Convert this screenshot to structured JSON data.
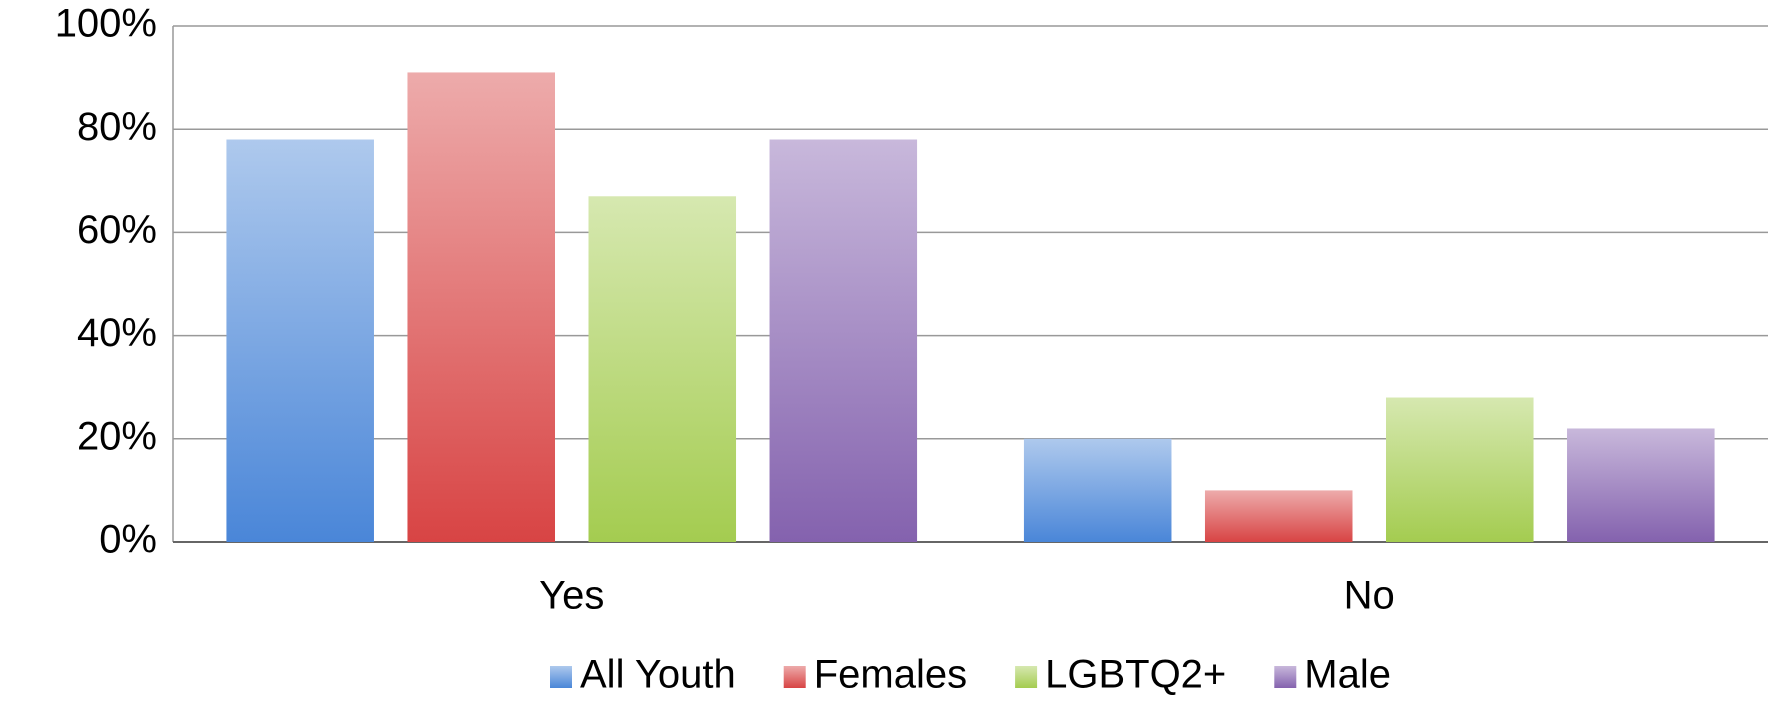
{
  "chart_data": {
    "type": "bar",
    "categories": [
      "Yes",
      "No"
    ],
    "series": [
      {
        "name": "All Youth",
        "color": "#4a86d8",
        "values": [
          78,
          20
        ]
      },
      {
        "name": "Females",
        "color": "#d84444",
        "values": [
          91,
          10
        ]
      },
      {
        "name": "LGBTQ2+",
        "color": "#a4cc50",
        "values": [
          67,
          28
        ]
      },
      {
        "name": "Male",
        "color": "#8462ae",
        "values": [
          78,
          22
        ]
      }
    ],
    "ylim": [
      0,
      100
    ],
    "yticks": [
      {
        "value": 0,
        "label": "0%"
      },
      {
        "value": 20,
        "label": "20%"
      },
      {
        "value": 40,
        "label": "40%"
      },
      {
        "value": 60,
        "label": "60%"
      },
      {
        "value": 80,
        "label": "80%"
      },
      {
        "value": 100,
        "label": "100%"
      }
    ],
    "grid": true,
    "legend": "bottom"
  }
}
